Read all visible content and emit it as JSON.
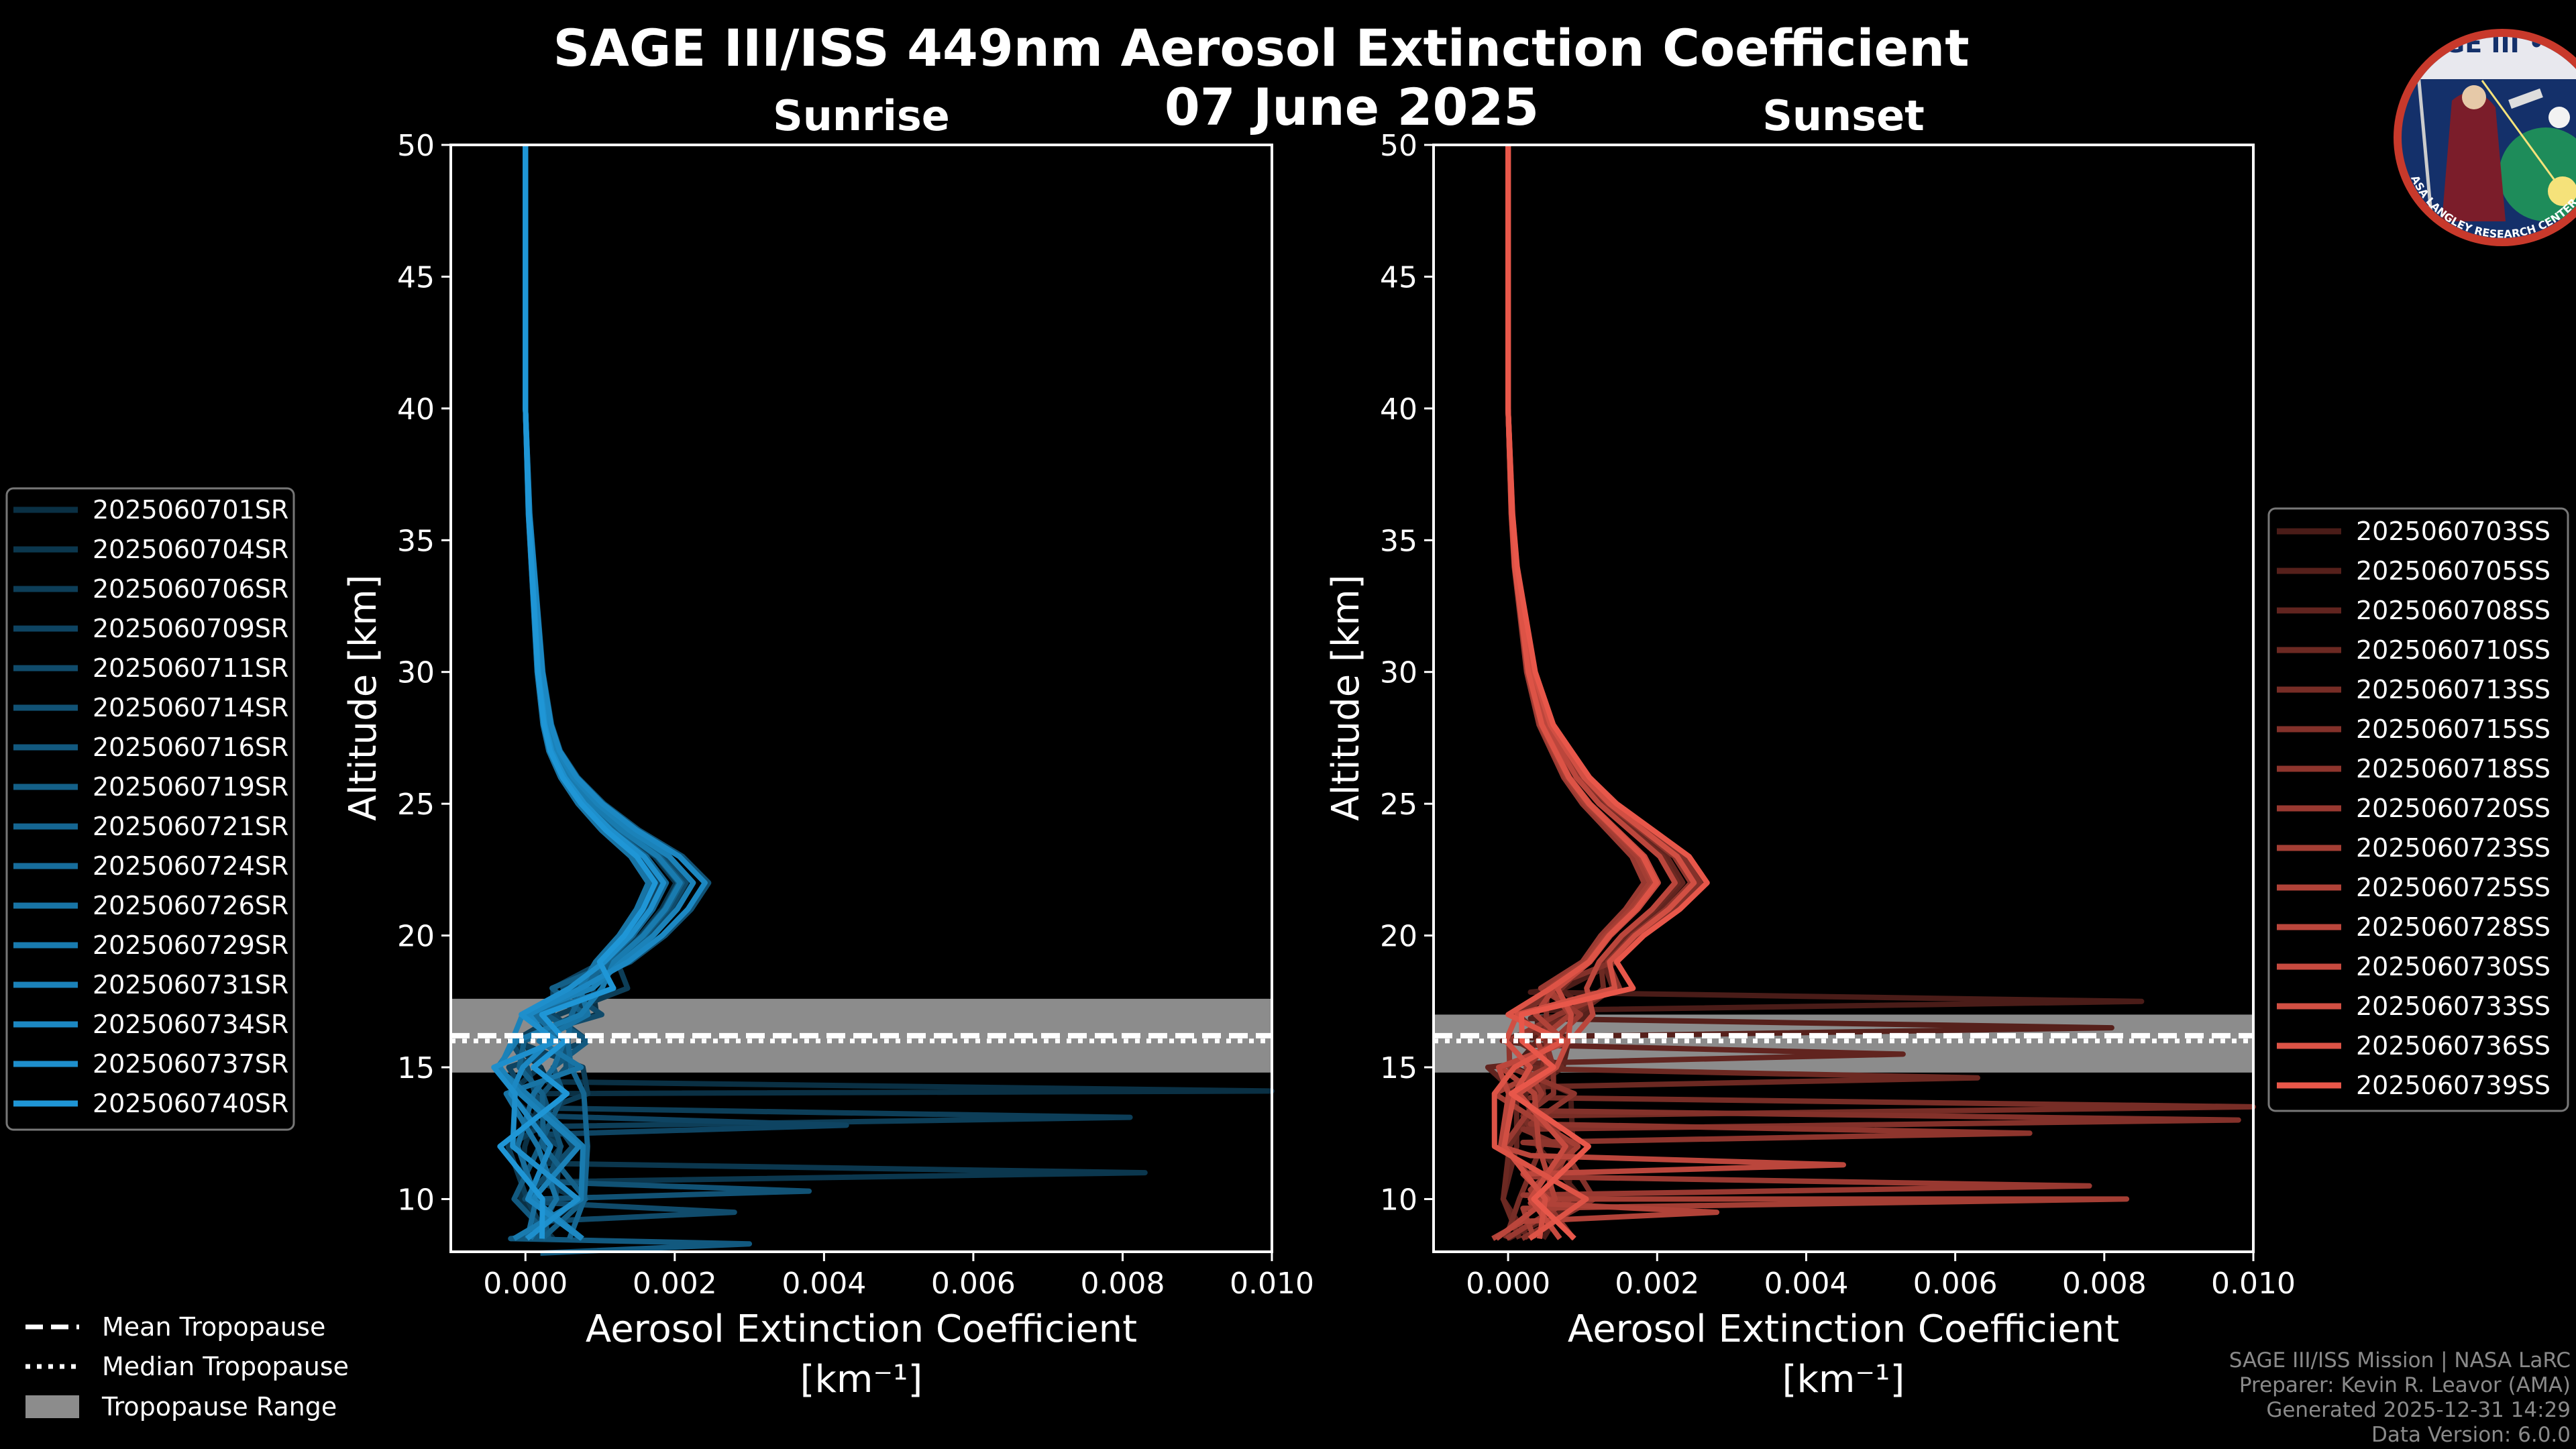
{
  "header": {
    "title": "SAGE III/ISS 449nm Aerosol Extinction Coefficient",
    "date": "07 June 2025"
  },
  "logo": {
    "text": "SAGE III • ISS",
    "ring_text": "BALL • NASA LANGLEY RESEARCH CENTER • TAS-I • ESA"
  },
  "colors": {
    "background": "#000000",
    "sunrise_base": "#1f96d6",
    "sunset_base": "#e8574a",
    "tropopause_band": "#8c8c8c"
  },
  "chart_data": [
    {
      "type": "line",
      "title": "Sunrise",
      "xlabel": "Aerosol Extinction Coefficient",
      "xlabel_units": "[km⁻¹]",
      "ylabel": "Altitude [km]",
      "xlim": [
        -0.001,
        0.01
      ],
      "ylim": [
        8,
        50
      ],
      "xticks": [
        0.0,
        0.002,
        0.004,
        0.006,
        0.008,
        0.01
      ],
      "xtick_labels": [
        "0.000",
        "0.002",
        "0.004",
        "0.006",
        "0.008",
        "0.010"
      ],
      "yticks": [
        10,
        15,
        20,
        25,
        30,
        35,
        40,
        45,
        50
      ],
      "tropopause": {
        "mean": 16.2,
        "median": 16.0,
        "range": [
          14.8,
          17.6
        ]
      },
      "legend": [
        "2025060701SR",
        "2025060704SR",
        "2025060706SR",
        "2025060709SR",
        "2025060711SR",
        "2025060714SR",
        "2025060716SR",
        "2025060719SR",
        "2025060721SR",
        "2025060724SR",
        "2025060726SR",
        "2025060729SR",
        "2025060731SR",
        "2025060734SR",
        "2025060737SR",
        "2025060740SR"
      ],
      "profile_altitudes": [
        8.5,
        10,
        12,
        14,
        15,
        16,
        17,
        18,
        19,
        20,
        21,
        22,
        23,
        24,
        25,
        26,
        27,
        28,
        30,
        32,
        34,
        36,
        40,
        45,
        50
      ],
      "mean_profile": [
        0.0003,
        0.0004,
        0.0003,
        0.0003,
        0.0002,
        0.0003,
        0.0005,
        0.0008,
        0.0012,
        0.0016,
        0.0019,
        0.0021,
        0.0018,
        0.0013,
        0.0009,
        0.0006,
        0.0004,
        0.0003,
        0.0002,
        0.00015,
        0.0001,
        5e-05,
        0.0,
        0.0,
        0.0
      ],
      "spikes": [
        [
          14.1,
          0.01
        ],
        [
          11.0,
          0.0083
        ],
        [
          13.1,
          0.0081
        ],
        [
          12.8,
          0.0043
        ],
        [
          9.5,
          0.0028
        ],
        [
          10.3,
          0.0038
        ],
        [
          8.3,
          0.003
        ]
      ]
    },
    {
      "type": "line",
      "title": "Sunset",
      "xlabel": "Aerosol Extinction Coefficient",
      "xlabel_units": "[km⁻¹]",
      "ylabel": "Altitude [km]",
      "xlim": [
        -0.001,
        0.01
      ],
      "ylim": [
        8,
        50
      ],
      "xticks": [
        0.0,
        0.002,
        0.004,
        0.006,
        0.008,
        0.01
      ],
      "xtick_labels": [
        "0.000",
        "0.002",
        "0.004",
        "0.006",
        "0.008",
        "0.010"
      ],
      "yticks": [
        10,
        15,
        20,
        25,
        30,
        35,
        40,
        45,
        50
      ],
      "tropopause": {
        "mean": 16.2,
        "median": 16.0,
        "range": [
          14.8,
          17.0
        ]
      },
      "legend": [
        "2025060703SS",
        "2025060705SS",
        "2025060708SS",
        "2025060710SS",
        "2025060713SS",
        "2025060715SS",
        "2025060718SS",
        "2025060720SS",
        "2025060723SS",
        "2025060725SS",
        "2025060728SS",
        "2025060730SS",
        "2025060733SS",
        "2025060736SS",
        "2025060739SS"
      ],
      "profile_altitudes": [
        8.5,
        10,
        12,
        14,
        15,
        16,
        17,
        18,
        19,
        20,
        21,
        22,
        23,
        24,
        25,
        26,
        27,
        28,
        30,
        32,
        34,
        36,
        40,
        45,
        50
      ],
      "mean_profile": [
        0.0003,
        0.0005,
        0.0004,
        0.0004,
        0.0003,
        0.0004,
        0.0006,
        0.0009,
        0.0012,
        0.0015,
        0.0019,
        0.0022,
        0.002,
        0.0016,
        0.0012,
        0.0009,
        0.0007,
        0.0005,
        0.0003,
        0.0002,
        0.0001,
        5e-05,
        0.0,
        0.0,
        0.0
      ],
      "spikes": [
        [
          17.5,
          0.0085
        ],
        [
          16.5,
          0.0081
        ],
        [
          15.5,
          0.0053
        ],
        [
          14.6,
          0.0063
        ],
        [
          13.5,
          0.01
        ],
        [
          13.0,
          0.0098
        ],
        [
          12.5,
          0.007
        ],
        [
          10.5,
          0.0078
        ],
        [
          10.0,
          0.0083
        ],
        [
          9.5,
          0.0028
        ],
        [
          11.3,
          0.0045
        ]
      ]
    }
  ],
  "tropo_legend": {
    "mean": "Mean Tropopause",
    "median": "Median Tropopause",
    "range": "Tropopause Range"
  },
  "credits": {
    "line1": "SAGE III/ISS Mission | NASA LaRC",
    "line2": "Preparer: Kevin R. Leavor (AMA)",
    "line3": "Generated 2025-12-31 14:29",
    "line4": "Data Version: 6.0.0"
  }
}
